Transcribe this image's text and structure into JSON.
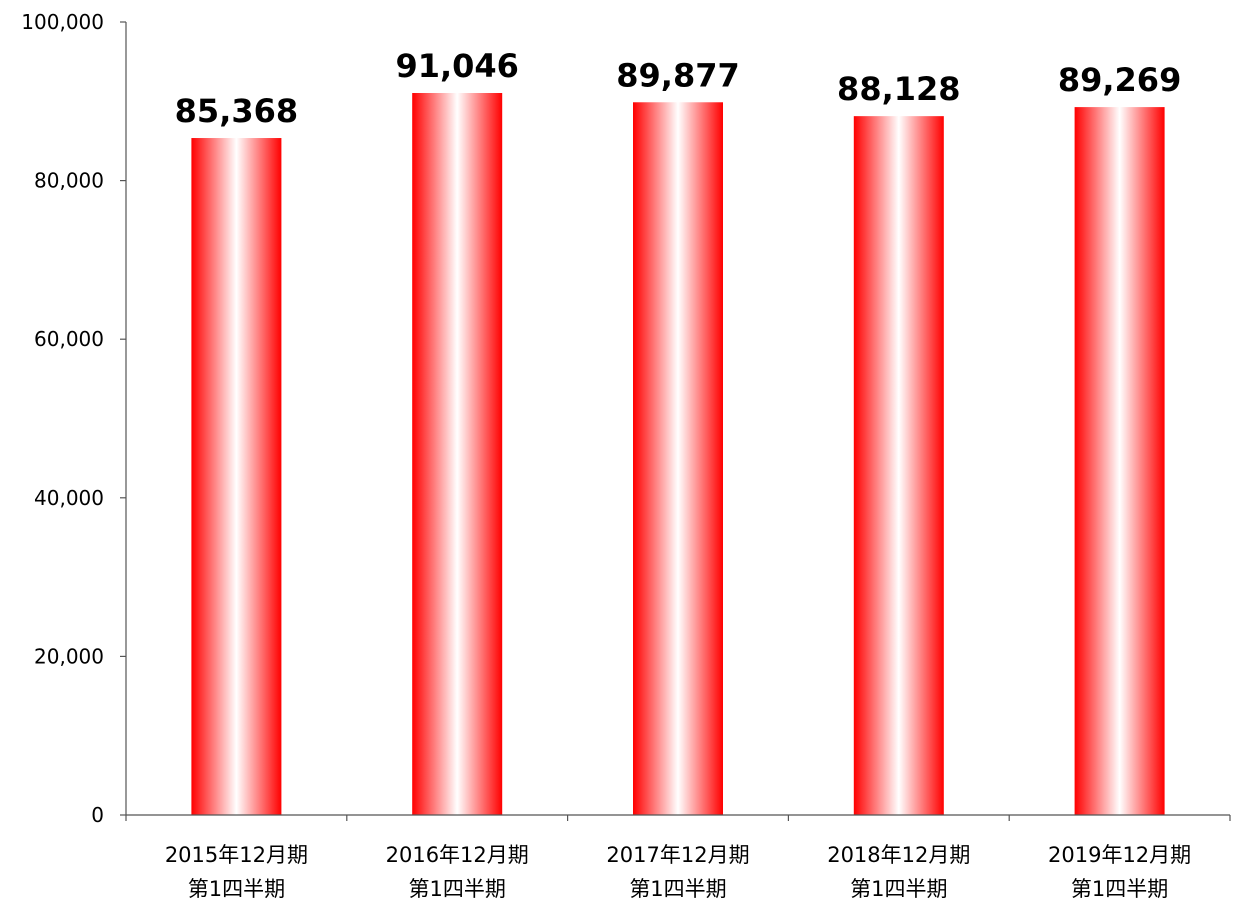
{
  "chart_data": {
    "type": "bar",
    "title": "",
    "xlabel": "",
    "ylabel": "",
    "categories": [
      [
        "2015年12月期",
        "第1四半期"
      ],
      [
        "2016年12月期",
        "第1四半期"
      ],
      [
        "2017年12月期",
        "第1四半期"
      ],
      [
        "2018年12月期",
        "第1四半期"
      ],
      [
        "2019年12月期",
        "第1四半期"
      ]
    ],
    "values": [
      85368,
      91046,
      89877,
      88128,
      89269
    ],
    "value_labels": [
      "85,368",
      "91,046",
      "89,877",
      "88,128",
      "89,269"
    ],
    "ylim": [
      0,
      100000
    ],
    "yticks": [
      0,
      20000,
      40000,
      60000,
      80000,
      100000
    ],
    "ytick_labels": [
      "0",
      "20,000",
      "40,000",
      "60,000",
      "80,000",
      "100,000"
    ],
    "grid": false,
    "legend": "none",
    "colors": {
      "bar_edge": "#ff0000",
      "bar_center": "#ffffff",
      "axis": "#555555"
    }
  }
}
